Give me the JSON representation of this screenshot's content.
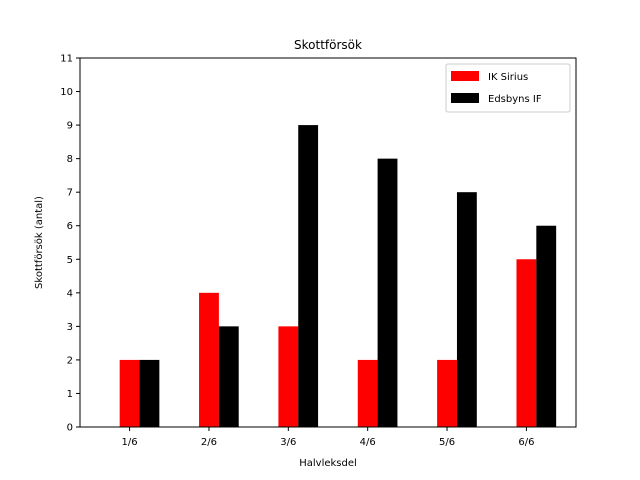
{
  "chart_data": {
    "type": "bar",
    "title": "Skottförsök",
    "xlabel": "Halvleksdel",
    "ylabel": "Skottförsök (antal)",
    "categories": [
      "1/6",
      "2/6",
      "3/6",
      "4/6",
      "5/6",
      "6/6"
    ],
    "ylim": [
      0,
      11
    ],
    "yticks": [
      0,
      1,
      2,
      3,
      4,
      5,
      6,
      7,
      8,
      9,
      10,
      11
    ],
    "grid": false,
    "legend_position": "top-right",
    "series": [
      {
        "name": "IK Sirius",
        "color": "#ff0000",
        "values": [
          2,
          4,
          3,
          2,
          2,
          5
        ]
      },
      {
        "name": "Edsbyns IF",
        "color": "#000000",
        "values": [
          2,
          3,
          9,
          8,
          7,
          6
        ]
      }
    ]
  }
}
